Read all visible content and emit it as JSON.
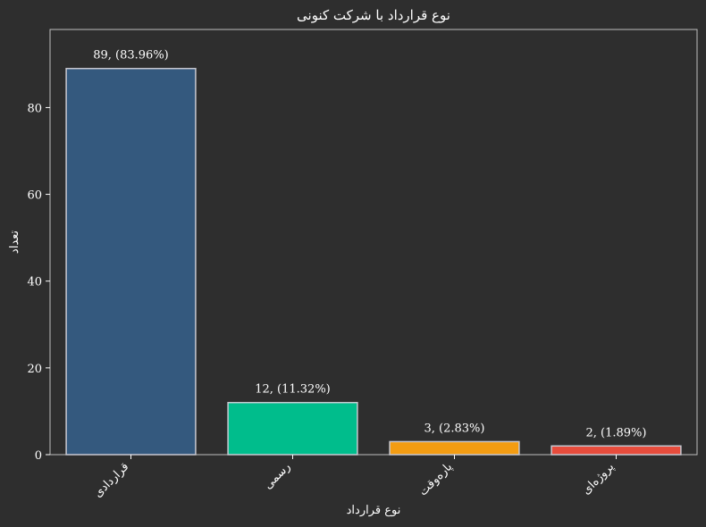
{
  "chart_data": {
    "type": "bar",
    "title": "نوع قرارداد با شرکت کنونی",
    "xlabel": "نوع قرارداد",
    "ylabel": "تعداد",
    "categories": [
      "قراردادی",
      "رسمی",
      "پاره‌وقت",
      "پروژه‌ای"
    ],
    "values": [
      89,
      12,
      3,
      2
    ],
    "bar_labels": [
      "89, (83.96%)",
      "12, (11.32%)",
      "3, (2.83%)",
      "2, (1.89%)"
    ],
    "colors": [
      "#34597e",
      "#00bd8c",
      "#f39c12",
      "#e74c3c"
    ],
    "ylim": [
      0,
      98
    ],
    "yticks": [
      0,
      20,
      40,
      60,
      80
    ],
    "grid": false,
    "background": "#2e2e2e",
    "edge_color": "#c8c8d0"
  }
}
